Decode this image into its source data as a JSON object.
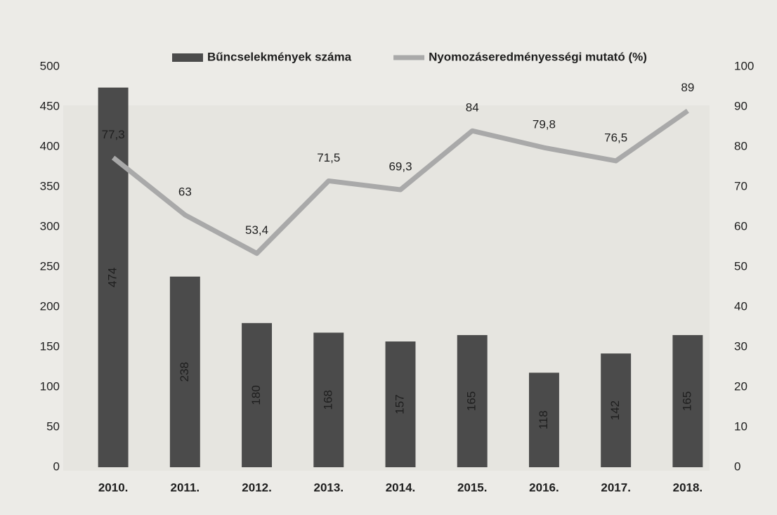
{
  "chart_data": {
    "type": "bar",
    "categories": [
      "2010.",
      "2011.",
      "2012.",
      "2013.",
      "2014.",
      "2015.",
      "2016.",
      "2017.",
      "2018."
    ],
    "series": [
      {
        "name": "Bűncselekmények száma",
        "color": "#4b4b4b",
        "values": [
          474,
          238,
          180,
          168,
          157,
          165,
          118,
          142,
          165
        ]
      },
      {
        "name": "Nyomozáseredményességi mutató (%)",
        "color": "#a9a9a9",
        "type": "line",
        "axis": "y2",
        "values": [
          77.3,
          63,
          53.4,
          71.5,
          69.3,
          84,
          79.8,
          76.5,
          89
        ],
        "value_labels": [
          "77,3",
          "63",
          "53,4",
          "71,5",
          "69,3",
          "84",
          "79,8",
          "76,5",
          "89"
        ]
      }
    ],
    "ylim": [
      0,
      500
    ],
    "yticks": [
      0,
      50,
      100,
      150,
      200,
      250,
      300,
      350,
      400,
      450,
      500
    ],
    "y2lim": [
      0,
      100
    ],
    "y2ticks": [
      0,
      10,
      20,
      30,
      40,
      50,
      60,
      70,
      80,
      90,
      100
    ]
  }
}
